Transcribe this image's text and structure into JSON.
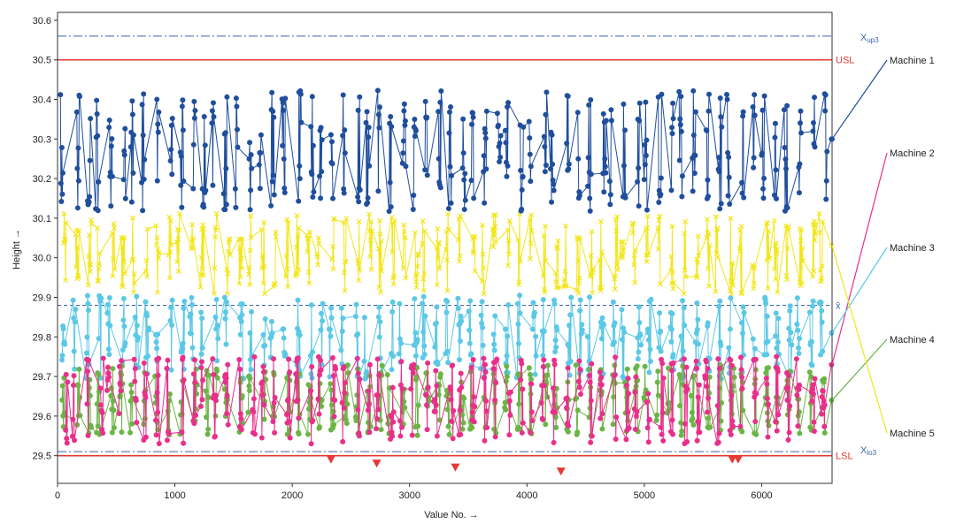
{
  "chart_data": {
    "type": "line",
    "xlabel": "Value No. →",
    "ylabel": "Height →",
    "xlim": [
      0,
      6600
    ],
    "ylim": [
      29.43,
      30.62
    ],
    "x_ticks": [
      0,
      1000,
      2000,
      3000,
      4000,
      5000,
      6000
    ],
    "y_ticks": [
      29.5,
      29.6,
      29.7,
      29.8,
      29.9,
      30.0,
      30.1,
      30.2,
      30.3,
      30.4,
      30.5,
      30.6
    ],
    "grid": false,
    "limits": [
      {
        "label": "USL",
        "value": 30.5,
        "color": "#e53935",
        "style": "solid"
      },
      {
        "label": "LSL",
        "value": 29.5,
        "color": "#e53935",
        "style": "solid"
      },
      {
        "label": "X",
        "sub": "up3",
        "value": 30.56,
        "color": "#3a63a8",
        "style": "dashdot"
      },
      {
        "label": "X",
        "sub": "lo3",
        "value": 29.51,
        "color": "#3a63a8",
        "style": "dashdot"
      },
      {
        "label": "x̄",
        "value": 29.88,
        "color": "#3a63a8",
        "style": "dashed"
      }
    ],
    "series": [
      {
        "name": "Machine 1",
        "color": "#1f4e9c",
        "marker": "circle",
        "center": 30.27,
        "range": [
          30.09,
          30.45
        ],
        "end": 30.3
      },
      {
        "name": "Machine 2",
        "color": "#e8308a",
        "marker": "circle",
        "center": 29.64,
        "range": [
          29.52,
          29.78
        ],
        "end": 29.73
      },
      {
        "name": "Machine 3",
        "color": "#5bc8e6",
        "marker": "circle",
        "center": 29.8,
        "range": [
          29.7,
          29.95
        ],
        "end": 29.81
      },
      {
        "name": "Machine 4",
        "color": "#6ab545",
        "marker": "circle",
        "center": 29.64,
        "range": [
          29.53,
          29.74
        ],
        "end": 29.64
      },
      {
        "name": "Machine 5",
        "color": "#f2e61a",
        "marker": "cross",
        "center": 30.01,
        "range": [
          29.88,
          30.12
        ],
        "end": 30.03
      }
    ],
    "violations": [
      {
        "x": 2330,
        "y": 29.5
      },
      {
        "x": 2720,
        "y": 29.49
      },
      {
        "x": 3390,
        "y": 29.48
      },
      {
        "x": 4290,
        "y": 29.47
      },
      {
        "x": 5750,
        "y": 29.5
      },
      {
        "x": 5800,
        "y": 29.5
      }
    ],
    "violation_color": "#e53935"
  }
}
